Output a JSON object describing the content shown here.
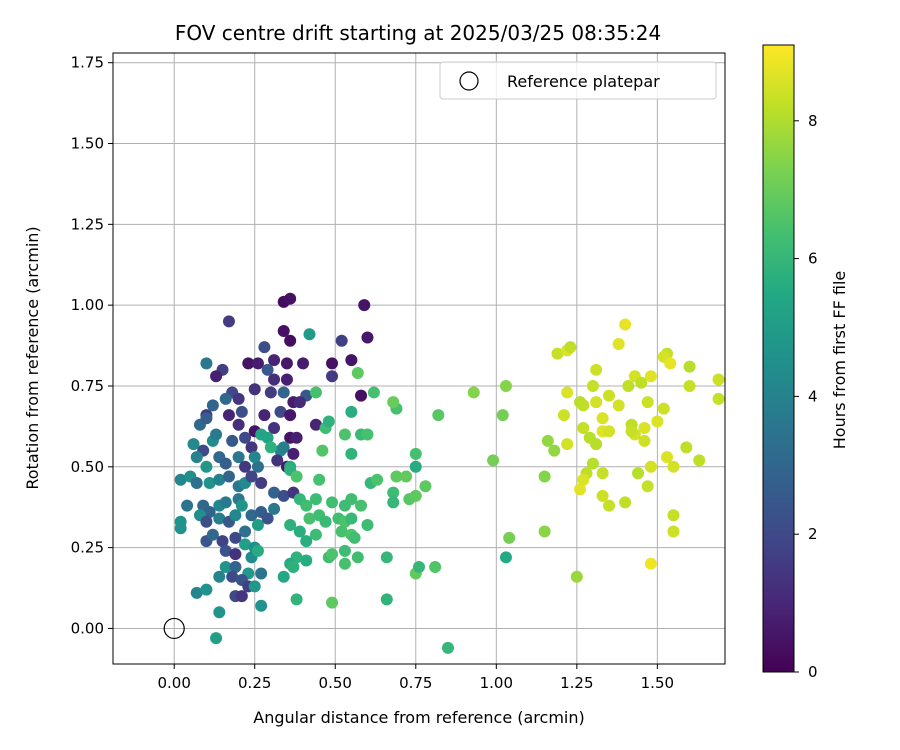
{
  "chart_data": {
    "type": "scatter",
    "title": "FOV centre drift starting at 2025/03/25 08:35:24",
    "xlabel": "Angular distance from reference (arcmin)",
    "ylabel": "Rotation from reference (arcmin)",
    "xlim": [
      -0.19,
      1.71
    ],
    "ylim": [
      -0.11,
      1.78
    ],
    "xticks": [
      "0.00",
      "0.25",
      "0.50",
      "0.75",
      "1.00",
      "1.25",
      "1.50"
    ],
    "yticks": [
      "0.00",
      "0.25",
      "0.50",
      "0.75",
      "1.00",
      "1.25",
      "1.50",
      "1.75"
    ],
    "grid": true,
    "legend": {
      "placement": "top-right",
      "entries": [
        {
          "label": "Reference platepar",
          "marker": "open-circle"
        }
      ]
    },
    "reference_point": {
      "x": 0.0,
      "y": 0.0
    },
    "colorbar": {
      "label": "Hours from first FF file",
      "colormap": "viridis",
      "range": [
        0,
        9.1
      ],
      "ticks": [
        "0",
        "2",
        "4",
        "6",
        "8"
      ]
    },
    "colors": {
      "viridis": [
        "#440154",
        "#482475",
        "#414487",
        "#355f8d",
        "#2a788e",
        "#21918c",
        "#22a884",
        "#44bf70",
        "#7ad151",
        "#bddf26",
        "#fde725"
      ]
    },
    "points": [
      [
        0.34,
        1.01,
        0.3
      ],
      [
        0.36,
        1.02,
        0.4
      ],
      [
        0.59,
        1.0,
        0.5
      ],
      [
        0.17,
        0.95,
        1.6
      ],
      [
        0.34,
        0.92,
        0.4
      ],
      [
        0.36,
        0.89,
        0.3
      ],
      [
        0.42,
        0.91,
        4.9
      ],
      [
        0.52,
        0.89,
        1.7
      ],
      [
        0.6,
        0.9,
        0.6
      ],
      [
        0.23,
        0.82,
        0.5
      ],
      [
        0.26,
        0.82,
        0.7
      ],
      [
        0.28,
        0.87,
        2.2
      ],
      [
        0.31,
        0.83,
        0.9
      ],
      [
        0.35,
        0.82,
        0.6
      ],
      [
        0.4,
        0.82,
        0.7
      ],
      [
        0.49,
        0.82,
        0.4
      ],
      [
        0.55,
        0.83,
        0.5
      ],
      [
        0.1,
        0.82,
        3.6
      ],
      [
        0.15,
        0.8,
        1.7
      ],
      [
        0.13,
        0.78,
        0.8
      ],
      [
        0.49,
        0.78,
        1.6
      ],
      [
        0.58,
        0.72,
        0.4
      ],
      [
        0.29,
        0.8,
        2.5
      ],
      [
        0.31,
        0.77,
        1.2
      ],
      [
        0.35,
        0.77,
        0.8
      ],
      [
        0.25,
        0.74,
        1.3
      ],
      [
        0.3,
        0.73,
        1.6
      ],
      [
        0.18,
        0.73,
        2.0
      ],
      [
        0.16,
        0.71,
        3.1
      ],
      [
        0.2,
        0.71,
        1.4
      ],
      [
        0.34,
        0.73,
        2.9
      ],
      [
        0.37,
        0.7,
        0.7
      ],
      [
        0.41,
        0.72,
        2.5
      ],
      [
        0.1,
        0.66,
        1.5
      ],
      [
        0.12,
        0.69,
        2.9
      ],
      [
        0.17,
        0.66,
        0.9
      ],
      [
        0.21,
        0.67,
        2.2
      ],
      [
        0.28,
        0.66,
        0.9
      ],
      [
        0.33,
        0.67,
        2.0
      ],
      [
        0.36,
        0.66,
        0.6
      ],
      [
        0.39,
        0.7,
        1.1
      ],
      [
        0.08,
        0.63,
        3.1
      ],
      [
        0.1,
        0.65,
        2.7
      ],
      [
        0.2,
        0.63,
        1.2
      ],
      [
        0.25,
        0.61,
        0.5
      ],
      [
        0.27,
        0.6,
        5.3
      ],
      [
        0.31,
        0.62,
        1.3
      ],
      [
        0.36,
        0.59,
        0.5
      ],
      [
        0.38,
        0.59,
        0.8
      ],
      [
        0.44,
        0.63,
        0.9
      ],
      [
        0.06,
        0.57,
        4.3
      ],
      [
        0.09,
        0.55,
        2.1
      ],
      [
        0.12,
        0.58,
        4.4
      ],
      [
        0.13,
        0.6,
        3.7
      ],
      [
        0.18,
        0.58,
        2.5
      ],
      [
        0.22,
        0.59,
        2.0
      ],
      [
        0.24,
        0.56,
        1.4
      ],
      [
        0.29,
        0.59,
        5.3
      ],
      [
        0.33,
        0.55,
        4.2
      ],
      [
        0.34,
        0.56,
        3.9
      ],
      [
        0.37,
        0.54,
        0.8
      ],
      [
        0.07,
        0.53,
        4.0
      ],
      [
        0.1,
        0.5,
        4.8
      ],
      [
        0.14,
        0.53,
        3.1
      ],
      [
        0.16,
        0.51,
        2.7
      ],
      [
        0.2,
        0.53,
        3.6
      ],
      [
        0.22,
        0.5,
        1.5
      ],
      [
        0.26,
        0.5,
        3.4
      ],
      [
        0.25,
        0.53,
        4.1
      ],
      [
        0.32,
        0.52,
        1.3
      ],
      [
        0.35,
        0.5,
        0.6
      ],
      [
        0.36,
        0.5,
        5.6
      ],
      [
        0.02,
        0.46,
        4.1
      ],
      [
        0.05,
        0.47,
        4.5
      ],
      [
        0.07,
        0.45,
        3.4
      ],
      [
        0.11,
        0.45,
        4.6
      ],
      [
        0.14,
        0.46,
        4.0
      ],
      [
        0.17,
        0.47,
        2.9
      ],
      [
        0.2,
        0.44,
        3.6
      ],
      [
        0.22,
        0.45,
        4.3
      ],
      [
        0.24,
        0.47,
        1.9
      ],
      [
        0.27,
        0.45,
        1.6
      ],
      [
        0.31,
        0.42,
        2.8
      ],
      [
        0.34,
        0.41,
        2.2
      ],
      [
        0.37,
        0.42,
        1.4
      ],
      [
        0.04,
        0.38,
        3.5
      ],
      [
        0.09,
        0.38,
        3.1
      ],
      [
        0.11,
        0.36,
        2.9
      ],
      [
        0.14,
        0.38,
        4.1
      ],
      [
        0.16,
        0.39,
        3.7
      ],
      [
        0.2,
        0.4,
        3.6
      ],
      [
        0.21,
        0.38,
        4.7
      ],
      [
        0.24,
        0.35,
        3.1
      ],
      [
        0.27,
        0.36,
        2.7
      ],
      [
        0.29,
        0.34,
        2.3
      ],
      [
        0.31,
        0.37,
        3.6
      ],
      [
        0.02,
        0.33,
        4.6
      ],
      [
        0.08,
        0.35,
        4.5
      ],
      [
        0.1,
        0.33,
        2.2
      ],
      [
        0.14,
        0.34,
        3.9
      ],
      [
        0.17,
        0.33,
        2.5
      ],
      [
        0.19,
        0.35,
        4.2
      ],
      [
        0.22,
        0.3,
        3.4
      ],
      [
        0.26,
        0.32,
        5.0
      ],
      [
        0.02,
        0.31,
        4.6
      ],
      [
        0.1,
        0.27,
        2.4
      ],
      [
        0.12,
        0.29,
        3.1
      ],
      [
        0.15,
        0.27,
        1.8
      ],
      [
        0.19,
        0.28,
        2.0
      ],
      [
        0.22,
        0.26,
        5.1
      ],
      [
        0.25,
        0.25,
        4.4
      ],
      [
        0.16,
        0.24,
        2.3
      ],
      [
        0.19,
        0.23,
        1.3
      ],
      [
        0.24,
        0.22,
        4.4
      ],
      [
        0.26,
        0.24,
        5.6
      ],
      [
        0.16,
        0.19,
        4.7
      ],
      [
        0.19,
        0.19,
        2.9
      ],
      [
        0.23,
        0.17,
        4.9
      ],
      [
        0.27,
        0.17,
        3.5
      ],
      [
        0.14,
        0.16,
        4.1
      ],
      [
        0.18,
        0.16,
        2.1
      ],
      [
        0.21,
        0.15,
        2.3
      ],
      [
        0.23,
        0.13,
        1.7
      ],
      [
        0.25,
        0.13,
        4.8
      ],
      [
        0.19,
        0.1,
        2.0
      ],
      [
        0.21,
        0.1,
        1.4
      ],
      [
        0.07,
        0.11,
        4.1
      ],
      [
        0.1,
        0.12,
        4.6
      ],
      [
        0.14,
        0.05,
        4.7
      ],
      [
        0.27,
        0.07,
        4.6
      ],
      [
        0.13,
        -0.03,
        5.1
      ],
      [
        0.3,
        0.56,
        5.8
      ],
      [
        0.36,
        0.49,
        5.8
      ],
      [
        0.39,
        0.4,
        6.0
      ],
      [
        0.44,
        0.4,
        6.2
      ],
      [
        0.41,
        0.38,
        6.3
      ],
      [
        0.42,
        0.34,
        6.4
      ],
      [
        0.45,
        0.35,
        6.3
      ],
      [
        0.47,
        0.33,
        6.1
      ],
      [
        0.45,
        0.46,
        6.4
      ],
      [
        0.49,
        0.39,
        6.3
      ],
      [
        0.51,
        0.34,
        6.3
      ],
      [
        0.53,
        0.38,
        6.2
      ],
      [
        0.53,
        0.33,
        6.5
      ],
      [
        0.55,
        0.34,
        6.1
      ],
      [
        0.55,
        0.4,
        6.3
      ],
      [
        0.52,
        0.3,
        6.4
      ],
      [
        0.55,
        0.29,
        6.5
      ],
      [
        0.56,
        0.28,
        6.3
      ],
      [
        0.58,
        0.38,
        6.4
      ],
      [
        0.6,
        0.32,
        6.2
      ],
      [
        0.61,
        0.45,
        6.0
      ],
      [
        0.63,
        0.46,
        6.5
      ],
      [
        0.58,
        0.6,
        6.1
      ],
      [
        0.6,
        0.6,
        6.4
      ],
      [
        0.53,
        0.6,
        6.5
      ],
      [
        0.55,
        0.67,
        5.7
      ],
      [
        0.55,
        0.54,
        5.9
      ],
      [
        0.57,
        0.79,
        6.8
      ],
      [
        0.62,
        0.73,
        6.4
      ],
      [
        0.69,
        0.68,
        6.4
      ],
      [
        0.68,
        0.7,
        7.0
      ],
      [
        0.69,
        0.47,
        6.8
      ],
      [
        0.72,
        0.47,
        6.9
      ],
      [
        0.73,
        0.4,
        6.7
      ],
      [
        0.75,
        0.41,
        6.8
      ],
      [
        0.68,
        0.42,
        6.2
      ],
      [
        0.68,
        0.39,
        6.0
      ],
      [
        0.75,
        0.5,
        5.6
      ],
      [
        0.75,
        0.54,
        6.4
      ],
      [
        0.78,
        0.44,
        6.8
      ],
      [
        0.82,
        0.66,
        6.7
      ],
      [
        0.44,
        0.73,
        6.4
      ],
      [
        0.47,
        0.62,
        6.2
      ],
      [
        0.48,
        0.64,
        5.8
      ],
      [
        0.46,
        0.55,
        6.6
      ],
      [
        0.38,
        0.47,
        6.5
      ],
      [
        0.36,
        0.32,
        5.8
      ],
      [
        0.39,
        0.3,
        5.7
      ],
      [
        0.41,
        0.27,
        5.7
      ],
      [
        0.44,
        0.29,
        6.2
      ],
      [
        0.38,
        0.22,
        5.9
      ],
      [
        0.41,
        0.21,
        5.6
      ],
      [
        0.48,
        0.22,
        6.2
      ],
      [
        0.49,
        0.23,
        6.5
      ],
      [
        0.53,
        0.2,
        6.4
      ],
      [
        0.53,
        0.24,
        6.2
      ],
      [
        0.57,
        0.22,
        6.3
      ],
      [
        0.34,
        0.16,
        5.4
      ],
      [
        0.36,
        0.2,
        5.6
      ],
      [
        0.37,
        0.19,
        5.8
      ],
      [
        0.38,
        0.09,
        5.9
      ],
      [
        0.49,
        0.08,
        6.8
      ],
      [
        0.66,
        0.09,
        5.9
      ],
      [
        0.66,
        0.22,
        6.0
      ],
      [
        0.75,
        0.17,
        6.9
      ],
      [
        0.76,
        0.19,
        6.0
      ],
      [
        0.81,
        0.19,
        6.6
      ],
      [
        0.85,
        -0.06,
        6.0
      ],
      [
        1.03,
        0.22,
        5.5
      ],
      [
        1.04,
        0.28,
        7.2
      ],
      [
        0.93,
        0.73,
        7.4
      ],
      [
        1.02,
        0.66,
        7.2
      ],
      [
        1.03,
        0.75,
        7.4
      ],
      [
        0.99,
        0.52,
        7.2
      ],
      [
        1.15,
        0.47,
        7.4
      ],
      [
        1.16,
        0.58,
        7.6
      ],
      [
        1.18,
        0.55,
        7.6
      ],
      [
        1.15,
        0.3,
        7.5
      ],
      [
        1.19,
        0.85,
        8.3
      ],
      [
        1.22,
        0.86,
        8.6
      ],
      [
        1.23,
        0.87,
        8.2
      ],
      [
        1.25,
        0.16,
        7.7
      ],
      [
        1.22,
        0.73,
        8.6
      ],
      [
        1.21,
        0.66,
        8.4
      ],
      [
        1.26,
        0.7,
        8.1
      ],
      [
        1.27,
        0.69,
        8.2
      ],
      [
        1.3,
        0.75,
        8.3
      ],
      [
        1.31,
        0.8,
        8.4
      ],
      [
        1.31,
        0.7,
        8.5
      ],
      [
        1.27,
        0.62,
        8.3
      ],
      [
        1.29,
        0.59,
        8.1
      ],
      [
        1.31,
        0.57,
        8.1
      ],
      [
        1.33,
        0.61,
        8.7
      ],
      [
        1.22,
        0.57,
        8.5
      ],
      [
        1.28,
        0.48,
        8.2
      ],
      [
        1.27,
        0.46,
        8.6
      ],
      [
        1.26,
        0.43,
        8.7
      ],
      [
        1.3,
        0.51,
        8.1
      ],
      [
        1.33,
        0.48,
        8.3
      ],
      [
        1.33,
        0.41,
        8.4
      ],
      [
        1.35,
        0.38,
        8.3
      ],
      [
        1.33,
        0.65,
        8.6
      ],
      [
        1.35,
        0.72,
        8.4
      ],
      [
        1.38,
        0.88,
        8.7
      ],
      [
        1.4,
        0.94,
        8.8
      ],
      [
        1.41,
        0.75,
        8.2
      ],
      [
        1.43,
        0.78,
        8.5
      ],
      [
        1.42,
        0.63,
        8.2
      ],
      [
        1.43,
        0.6,
        8.5
      ],
      [
        1.46,
        0.58,
        8.4
      ],
      [
        1.46,
        0.62,
        8.6
      ],
      [
        1.44,
        0.48,
        8.1
      ],
      [
        1.47,
        0.44,
        8.3
      ],
      [
        1.48,
        0.5,
        8.5
      ],
      [
        1.4,
        0.39,
        8.2
      ],
      [
        1.38,
        0.69,
        8.5
      ],
      [
        1.45,
        0.76,
        8.2
      ],
      [
        1.48,
        0.78,
        8.7
      ],
      [
        1.47,
        0.7,
        8.4
      ],
      [
        1.5,
        0.64,
        8.6
      ],
      [
        1.52,
        0.68,
        8.4
      ],
      [
        1.53,
        0.85,
        8.3
      ],
      [
        1.52,
        0.84,
        8.5
      ],
      [
        1.54,
        0.82,
        8.8
      ],
      [
        1.53,
        0.53,
        8.6
      ],
      [
        1.55,
        0.5,
        8.5
      ],
      [
        1.55,
        0.35,
        8.3
      ],
      [
        1.55,
        0.3,
        8.4
      ],
      [
        1.48,
        0.2,
        8.9
      ],
      [
        1.59,
        0.56,
        8.2
      ],
      [
        1.6,
        0.75,
        8.3
      ],
      [
        1.6,
        0.81,
        8.1
      ],
      [
        1.63,
        0.52,
        8.2
      ],
      [
        1.69,
        0.77,
        8.4
      ],
      [
        1.69,
        0.71,
        8.3
      ],
      [
        1.42,
        0.61,
        8.3
      ],
      [
        1.35,
        0.61,
        8.5
      ]
    ]
  }
}
